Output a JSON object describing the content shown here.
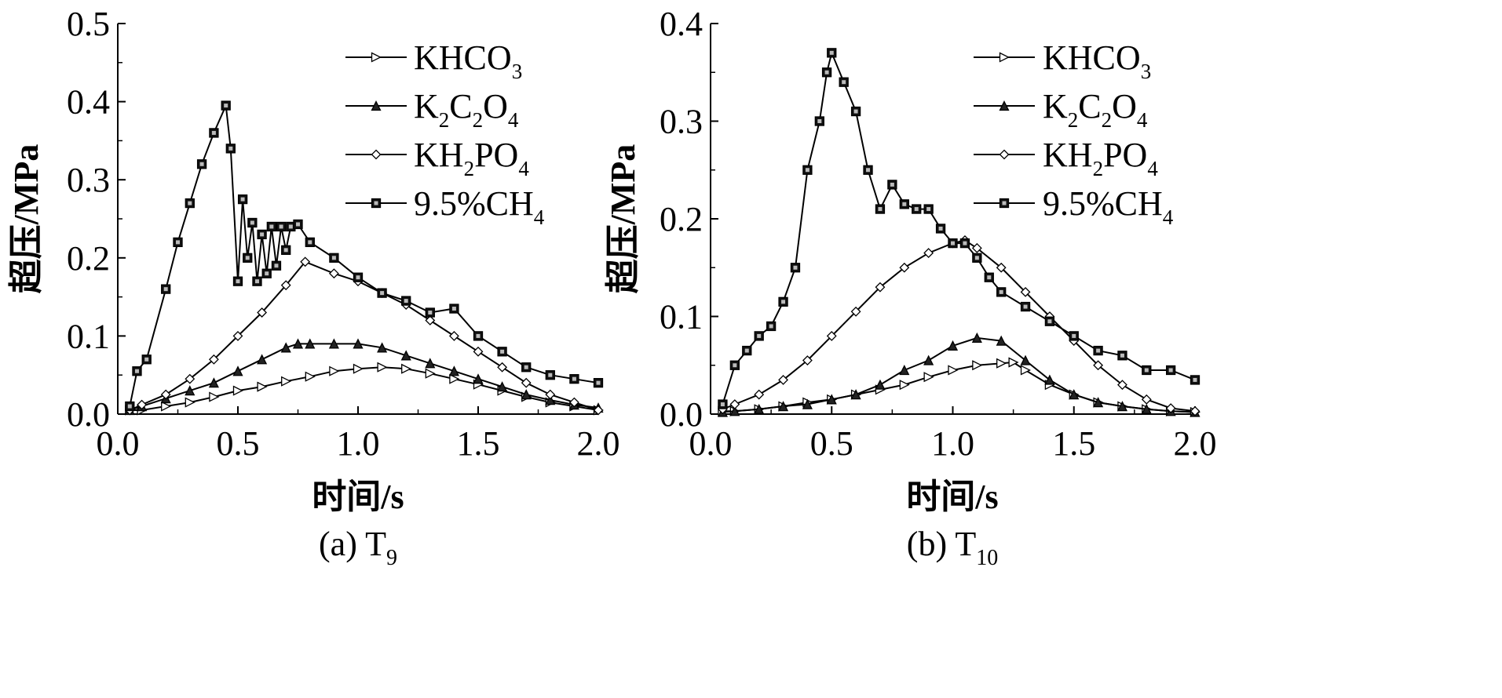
{
  "chart_data": [
    {
      "type": "line",
      "caption_prefix": "(a)",
      "caption_main": "T",
      "caption_sub": "9",
      "xlabel": "时间/s",
      "ylabel": "超压/MPa",
      "xlim": [
        0,
        2
      ],
      "ylim": [
        0,
        0.5
      ],
      "xticks": [
        "0.0",
        "0.5",
        "1.0",
        "1.5",
        "2.0"
      ],
      "yticks": [
        "0.0",
        "0.1",
        "0.2",
        "0.3",
        "0.4",
        "0.5"
      ],
      "legend_position": "top-right",
      "series": [
        {
          "name": "KHCO3",
          "label_parts": [
            [
              "KHCO",
              ""
            ],
            [
              "3",
              "sub"
            ]
          ],
          "marker": "triangle-right",
          "x": [
            0.05,
            0.1,
            0.2,
            0.3,
            0.4,
            0.5,
            0.6,
            0.7,
            0.8,
            0.9,
            1.0,
            1.1,
            1.2,
            1.3,
            1.4,
            1.5,
            1.6,
            1.7,
            1.8,
            1.9,
            2.0
          ],
          "y": [
            0.005,
            0.005,
            0.01,
            0.015,
            0.022,
            0.03,
            0.035,
            0.042,
            0.048,
            0.055,
            0.058,
            0.06,
            0.058,
            0.052,
            0.045,
            0.038,
            0.03,
            0.022,
            0.015,
            0.01,
            0.005
          ]
        },
        {
          "name": "K2C2O4",
          "label_parts": [
            [
              "K",
              ""
            ],
            [
              "2",
              "sub"
            ],
            [
              "C",
              ""
            ],
            [
              "2",
              "sub"
            ],
            [
              "O",
              ""
            ],
            [
              "4",
              "sub"
            ]
          ],
          "marker": "triangle-up",
          "x": [
            0.05,
            0.1,
            0.2,
            0.3,
            0.4,
            0.5,
            0.6,
            0.7,
            0.75,
            0.8,
            0.9,
            1.0,
            1.1,
            1.2,
            1.3,
            1.4,
            1.5,
            1.6,
            1.7,
            1.8,
            1.9,
            2.0
          ],
          "y": [
            0.005,
            0.01,
            0.02,
            0.03,
            0.04,
            0.055,
            0.07,
            0.085,
            0.09,
            0.09,
            0.09,
            0.09,
            0.085,
            0.075,
            0.065,
            0.055,
            0.045,
            0.035,
            0.025,
            0.018,
            0.012,
            0.008
          ]
        },
        {
          "name": "KH2PO4",
          "label_parts": [
            [
              "KH",
              ""
            ],
            [
              "2",
              "sub"
            ],
            [
              "PO",
              ""
            ],
            [
              "4",
              "sub"
            ]
          ],
          "marker": "diamond",
          "x": [
            0.05,
            0.1,
            0.2,
            0.3,
            0.4,
            0.5,
            0.6,
            0.7,
            0.78,
            0.9,
            1.0,
            1.1,
            1.2,
            1.3,
            1.4,
            1.5,
            1.6,
            1.7,
            1.8,
            1.9,
            2.0
          ],
          "y": [
            0.005,
            0.012,
            0.025,
            0.045,
            0.07,
            0.1,
            0.13,
            0.165,
            0.195,
            0.18,
            0.17,
            0.155,
            0.14,
            0.12,
            0.1,
            0.08,
            0.06,
            0.04,
            0.025,
            0.015,
            0.005
          ]
        },
        {
          "name": "9.5%CH4",
          "label_parts": [
            [
              "9.5%CH",
              ""
            ],
            [
              "4",
              "sub"
            ]
          ],
          "marker": "square",
          "x": [
            0.05,
            0.08,
            0.12,
            0.2,
            0.25,
            0.3,
            0.35,
            0.4,
            0.45,
            0.47,
            0.5,
            0.52,
            0.54,
            0.56,
            0.58,
            0.6,
            0.62,
            0.64,
            0.66,
            0.68,
            0.7,
            0.72,
            0.75,
            0.8,
            0.9,
            1.0,
            1.1,
            1.2,
            1.3,
            1.4,
            1.5,
            1.6,
            1.7,
            1.8,
            1.9,
            2.0
          ],
          "y": [
            0.01,
            0.055,
            0.07,
            0.16,
            0.22,
            0.27,
            0.32,
            0.36,
            0.395,
            0.34,
            0.17,
            0.275,
            0.2,
            0.245,
            0.17,
            0.23,
            0.18,
            0.24,
            0.19,
            0.24,
            0.21,
            0.24,
            0.243,
            0.22,
            0.2,
            0.175,
            0.155,
            0.145,
            0.13,
            0.135,
            0.1,
            0.08,
            0.06,
            0.05,
            0.045,
            0.04
          ]
        }
      ]
    },
    {
      "type": "line",
      "caption_prefix": "(b)",
      "caption_main": "T",
      "caption_sub": "10",
      "xlabel": "时间/s",
      "ylabel": "超压/MPa",
      "xlim": [
        0,
        2
      ],
      "ylim": [
        0,
        0.4
      ],
      "xticks": [
        "0.0",
        "0.5",
        "1.0",
        "1.5",
        "2.0"
      ],
      "yticks": [
        "0.0",
        "0.1",
        "0.2",
        "0.3",
        "0.4"
      ],
      "legend_position": "top-right",
      "series": [
        {
          "name": "KHCO3",
          "label_parts": [
            [
              "KHCO",
              ""
            ],
            [
              "3",
              "sub"
            ]
          ],
          "marker": "triangle-right",
          "x": [
            0.05,
            0.1,
            0.2,
            0.3,
            0.4,
            0.5,
            0.6,
            0.7,
            0.8,
            0.9,
            1.0,
            1.1,
            1.2,
            1.25,
            1.3,
            1.4,
            1.5,
            1.6,
            1.7,
            1.8,
            1.9,
            2.0
          ],
          "y": [
            0.003,
            0.003,
            0.005,
            0.008,
            0.012,
            0.015,
            0.02,
            0.025,
            0.03,
            0.038,
            0.045,
            0.05,
            0.052,
            0.053,
            0.045,
            0.03,
            0.02,
            0.012,
            0.008,
            0.005,
            0.003,
            0.002
          ]
        },
        {
          "name": "K2C2O4",
          "label_parts": [
            [
              "K",
              ""
            ],
            [
              "2",
              "sub"
            ],
            [
              "C",
              ""
            ],
            [
              "2",
              "sub"
            ],
            [
              "O",
              ""
            ],
            [
              "4",
              "sub"
            ]
          ],
          "marker": "triangle-up",
          "x": [
            0.05,
            0.1,
            0.2,
            0.3,
            0.4,
            0.5,
            0.6,
            0.7,
            0.8,
            0.9,
            1.0,
            1.1,
            1.2,
            1.3,
            1.4,
            1.5,
            1.6,
            1.7,
            1.8,
            1.9,
            2.0
          ],
          "y": [
            0.002,
            0.003,
            0.005,
            0.008,
            0.01,
            0.015,
            0.02,
            0.03,
            0.045,
            0.055,
            0.07,
            0.078,
            0.075,
            0.055,
            0.035,
            0.02,
            0.012,
            0.008,
            0.005,
            0.003,
            0.002
          ]
        },
        {
          "name": "KH2PO4",
          "label_parts": [
            [
              "KH",
              ""
            ],
            [
              "2",
              "sub"
            ],
            [
              "PO",
              ""
            ],
            [
              "4",
              "sub"
            ]
          ],
          "marker": "diamond",
          "x": [
            0.05,
            0.1,
            0.2,
            0.3,
            0.4,
            0.5,
            0.6,
            0.7,
            0.8,
            0.9,
            1.0,
            1.05,
            1.1,
            1.2,
            1.3,
            1.4,
            1.5,
            1.6,
            1.7,
            1.8,
            1.9,
            2.0
          ],
          "y": [
            0.005,
            0.01,
            0.02,
            0.035,
            0.055,
            0.08,
            0.105,
            0.13,
            0.15,
            0.165,
            0.175,
            0.178,
            0.17,
            0.15,
            0.125,
            0.1,
            0.075,
            0.05,
            0.03,
            0.015,
            0.006,
            0.003
          ]
        },
        {
          "name": "9.5%CH4",
          "label_parts": [
            [
              "9.5%CH",
              ""
            ],
            [
              "4",
              "sub"
            ]
          ],
          "marker": "square",
          "x": [
            0.05,
            0.1,
            0.15,
            0.2,
            0.25,
            0.3,
            0.35,
            0.4,
            0.45,
            0.48,
            0.5,
            0.55,
            0.6,
            0.65,
            0.7,
            0.75,
            0.8,
            0.85,
            0.9,
            0.95,
            1.0,
            1.05,
            1.1,
            1.15,
            1.2,
            1.3,
            1.4,
            1.5,
            1.6,
            1.7,
            1.8,
            1.9,
            2.0
          ],
          "y": [
            0.01,
            0.05,
            0.065,
            0.08,
            0.09,
            0.115,
            0.15,
            0.25,
            0.3,
            0.35,
            0.37,
            0.34,
            0.31,
            0.25,
            0.21,
            0.235,
            0.215,
            0.21,
            0.21,
            0.19,
            0.175,
            0.175,
            0.16,
            0.14,
            0.125,
            0.11,
            0.095,
            0.08,
            0.065,
            0.06,
            0.045,
            0.045,
            0.035
          ]
        }
      ]
    }
  ]
}
